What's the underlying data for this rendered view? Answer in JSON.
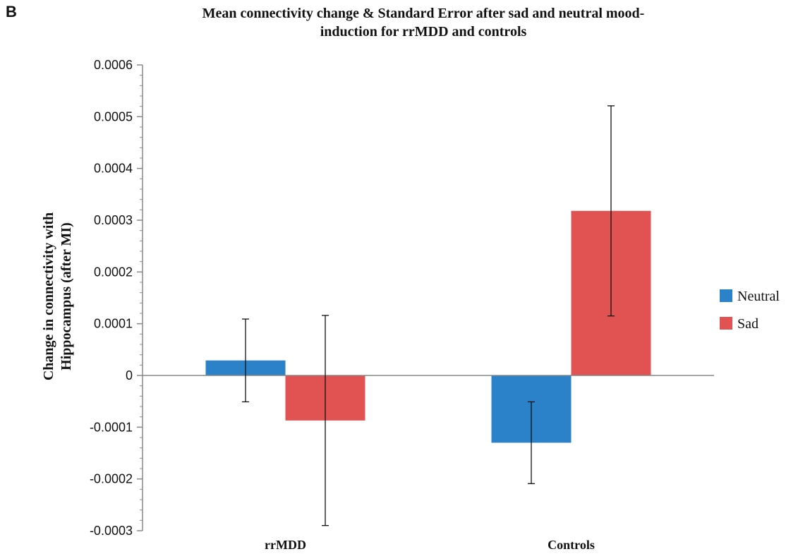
{
  "panel_label": "B",
  "chart_data": {
    "type": "bar",
    "title_lines": [
      "Mean connectivity change & Standard Error after sad and neutral mood-",
      "induction for rrMDD and controls"
    ],
    "ylabel_lines": [
      "Change in connectivity with",
      "Hippocampus (after MI)"
    ],
    "xlabel": "",
    "categories": [
      "rrMDD",
      "Controls"
    ],
    "series": [
      {
        "name": "Neutral",
        "color": "#2b82c9",
        "values": [
          2.9e-05,
          -0.00013
        ],
        "errors": [
          8e-05,
          7.9e-05
        ]
      },
      {
        "name": "Sad",
        "color": "#e15252",
        "values": [
          -8.7e-05,
          0.000318
        ],
        "errors": [
          0.000203,
          0.000203
        ]
      }
    ],
    "ylim": [
      -0.0003,
      0.0006
    ],
    "yticks": [
      -0.0003,
      -0.0002,
      -0.0001,
      0,
      0.0001,
      0.0002,
      0.0003,
      0.0004,
      0.0005,
      0.0006
    ],
    "ytick_labels": [
      "-0.0003",
      "-0.0002",
      "-0.0001",
      "0",
      "0.0001",
      "0.0002",
      "0.0003",
      "0.0004",
      "0.0005",
      "0.0006"
    ],
    "grid": false,
    "legend_position": "right"
  }
}
